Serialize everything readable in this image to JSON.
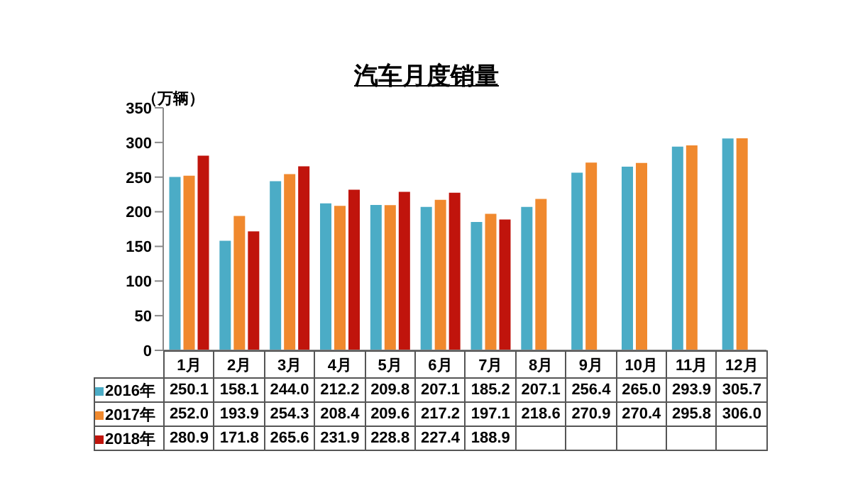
{
  "chart_data": {
    "type": "bar",
    "title": "汽车月度销量",
    "ylabel": "（万辆）",
    "categories": [
      "1月",
      "2月",
      "3月",
      "4月",
      "5月",
      "6月",
      "7月",
      "8月",
      "9月",
      "10月",
      "11月",
      "12月"
    ],
    "series": [
      {
        "name": "2016年",
        "color": "#4bacc6",
        "values": [
          250.1,
          158.1,
          244.0,
          212.2,
          209.8,
          207.1,
          185.2,
          207.1,
          256.4,
          265.0,
          293.9,
          305.7
        ],
        "value_labels": [
          "250.1",
          "158.1",
          "244.0",
          "212.2",
          "209.8",
          "207.1",
          "185.2",
          "207.1",
          "256.4",
          "265.0",
          "293.9",
          "305.7"
        ]
      },
      {
        "name": "2017年",
        "color": "#f0892e",
        "values": [
          252.0,
          193.9,
          254.3,
          208.4,
          209.6,
          217.2,
          197.1,
          218.6,
          270.9,
          270.4,
          295.8,
          306.0
        ],
        "value_labels": [
          "252.0",
          "193.9",
          "254.3",
          "208.4",
          "209.6",
          "217.2",
          "197.1",
          "218.6",
          "270.9",
          "270.4",
          "295.8",
          "306.0"
        ]
      },
      {
        "name": "2018年",
        "color": "#c0140c",
        "values": [
          280.9,
          171.8,
          265.6,
          231.9,
          228.8,
          227.4,
          188.9,
          null,
          null,
          null,
          null,
          null
        ],
        "value_labels": [
          "280.9",
          "171.8",
          "265.6",
          "231.9",
          "228.8",
          "227.4",
          "188.9",
          null,
          null,
          null,
          null,
          null
        ]
      }
    ],
    "ylim": [
      0,
      350
    ],
    "yticks": [
      0,
      50,
      100,
      150,
      200,
      250,
      300,
      350
    ],
    "legend": "bottom"
  }
}
